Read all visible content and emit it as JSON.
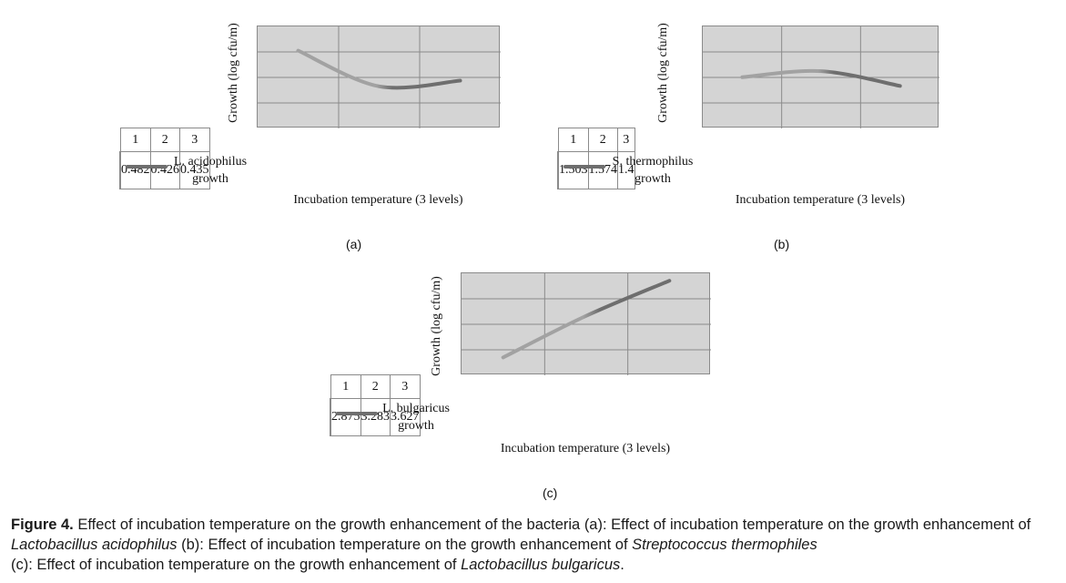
{
  "chart_data": [
    {
      "type": "line",
      "id": "a",
      "panel_label": "(a)",
      "ylabel": "Growth (log cfu/m)",
      "xlabel": "Incubation temperature (3 levels)",
      "categories": [
        "1",
        "2",
        "3"
      ],
      "series": [
        {
          "name": "L. acidophilus growth",
          "name_line1": "L. acidophilus",
          "name_line2": "growth",
          "values": [
            0.482,
            0.426,
            0.435
          ],
          "value_labels": [
            "0.482",
            "0.426",
            "0.435"
          ]
        }
      ],
      "ylim": [
        0.36,
        0.52
      ],
      "colors": {
        "start": "#a2a2a2",
        "end": "#6e6e6e"
      }
    },
    {
      "type": "line",
      "id": "b",
      "panel_label": "(b)",
      "ylabel": "Growth (log cfu/m)",
      "xlabel": "Incubation temperature (3 levels)",
      "categories": [
        "1",
        "2",
        "3"
      ],
      "series": [
        {
          "name": "S. thermophilus growth",
          "name_line1": "S. thermophilus",
          "name_line2": "growth",
          "values": [
            1.503,
            1.574,
            1.4
          ],
          "value_labels": [
            "1.503",
            "1.574",
            "1.4"
          ]
        }
      ],
      "ylim": [
        0.9,
        2.1
      ],
      "colors": {
        "start": "#a2a2a2",
        "end": "#6e6e6e"
      }
    },
    {
      "type": "line",
      "id": "c",
      "panel_label": "(c)",
      "ylabel": "Growth (log cfu/m)",
      "xlabel": "Incubation temperature (3 levels)",
      "categories": [
        "1",
        "2",
        "3"
      ],
      "series": [
        {
          "name": "L. bulgaricus growth",
          "name_line1": "L. bulgaricus",
          "name_line2": "growth",
          "values": [
            2.875,
            3.283,
            3.627
          ],
          "value_labels": [
            "2.875",
            "3.283",
            "3.627"
          ]
        }
      ],
      "ylim": [
        2.7,
        3.7
      ],
      "colors": {
        "start": "#a2a2a2",
        "end": "#6e6e6e"
      }
    }
  ],
  "caption": {
    "label": "Figure 4.",
    "part1": " Effect of incubation temperature on the growth enhancement of the bacteria (a): Effect of incubation temperature on the growth enhancement of ",
    "italic1": "Lactobacillus acidophilus",
    "part2": " (b): Effect of incubation temperature on the growth enhancement of ",
    "italic2": "Streptococcus thermophiles",
    "part3": " (c): Effect of incubation temperature on the growth enhancement of ",
    "italic3": "Lactobacillus bulgaricus",
    "part4": "."
  }
}
